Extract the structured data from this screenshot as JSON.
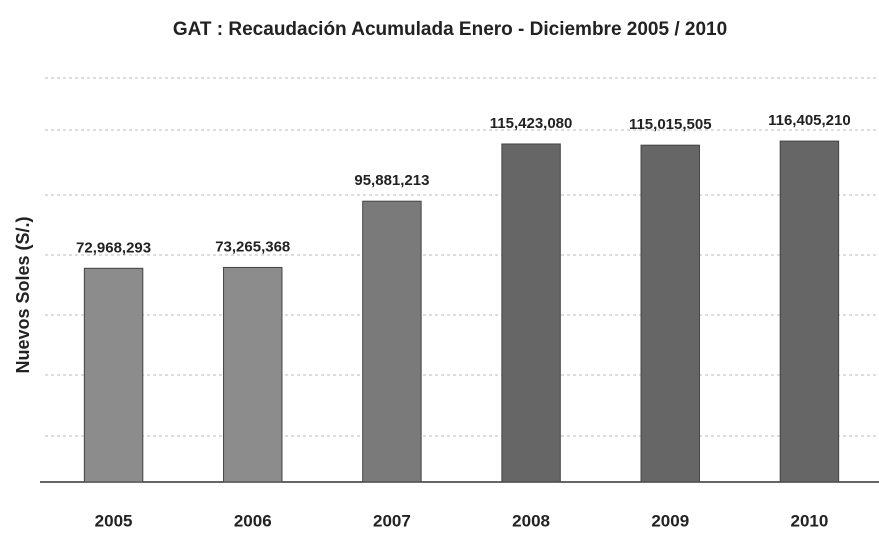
{
  "chart_data": {
    "type": "bar",
    "title": "GAT : Recaudación Acumulada Enero - Diciembre 2005 / 2010",
    "y_label": "Nuevos Soles (S/.)",
    "categories": [
      "2005",
      "2006",
      "2007",
      "2008",
      "2009",
      "2010"
    ],
    "values": [
      72968293,
      73265368,
      95881213,
      115423080,
      115015505,
      116405210
    ],
    "value_labels": [
      "72,968,293",
      "73,265,368",
      "95,881,213",
      "115,423,080",
      "115,015,505",
      "116,405,210"
    ],
    "colors": [
      "#8c8c8c",
      "#8c8c8c",
      "#7a7a7a",
      "#666666",
      "#666666",
      "#666666"
    ],
    "ylim": [
      0,
      140000000
    ]
  }
}
